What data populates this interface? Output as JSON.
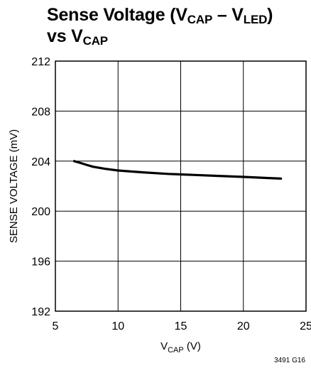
{
  "chart_data": {
    "type": "line",
    "title": {
      "line1_main": "Sense Voltage (V",
      "line1_sub1": "CAP",
      "line1_mid": " – V",
      "line1_sub2": "LED",
      "line1_end": ")",
      "line2_main": "vs V",
      "line2_sub": "CAP"
    },
    "xlabel": {
      "main": "V",
      "sub": "CAP",
      "unit": " (V)"
    },
    "ylabel": "SENSE VOLTAGE (mV)",
    "xlim": [
      5,
      25
    ],
    "ylim": [
      192,
      212
    ],
    "xticks": [
      "5",
      "10",
      "15",
      "20",
      "25"
    ],
    "yticks": [
      "192",
      "196",
      "200",
      "204",
      "208",
      "212"
    ],
    "grid": true,
    "series": [
      {
        "x": [
          6.5,
          7,
          7.5,
          8,
          9,
          10,
          12,
          14,
          16,
          18,
          20,
          22,
          23
        ],
        "y": [
          204.0,
          203.85,
          203.7,
          203.55,
          203.38,
          203.25,
          203.1,
          202.98,
          202.9,
          202.82,
          202.74,
          202.65,
          202.6
        ]
      }
    ],
    "figure_code": "3491 G16"
  }
}
